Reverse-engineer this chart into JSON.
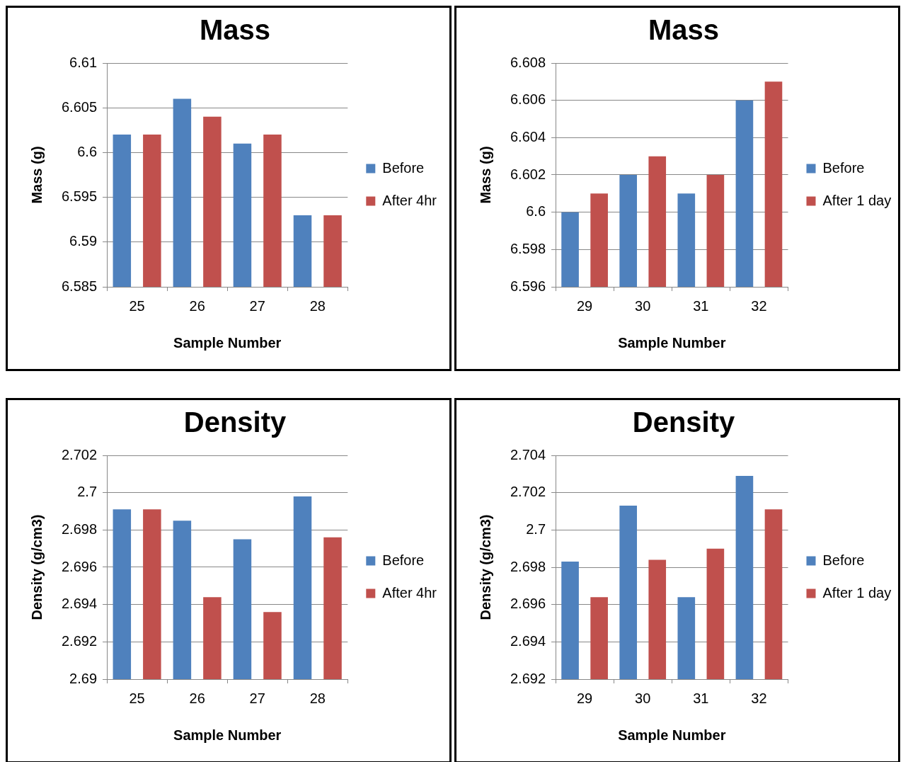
{
  "chart_data": [
    {
      "type": "bar",
      "title": "Mass",
      "xlabel": "Sample Number",
      "ylabel": "Mass (g)",
      "categories": [
        "25",
        "26",
        "27",
        "28"
      ],
      "series": [
        {
          "name": "Before",
          "color": "#4f81bd",
          "values": [
            6.602,
            6.606,
            6.601,
            6.593
          ]
        },
        {
          "name": "After 4hr",
          "color": "#c0504d",
          "values": [
            6.602,
            6.604,
            6.602,
            6.593
          ]
        }
      ],
      "ylim": [
        6.585,
        6.61
      ],
      "yticks": [
        6.585,
        6.59,
        6.595,
        6.6,
        6.605,
        6.61
      ],
      "grid": "y",
      "legend": "right"
    },
    {
      "type": "bar",
      "title": "Mass",
      "xlabel": "Sample Number",
      "ylabel": "Mass (g)",
      "categories": [
        "29",
        "30",
        "31",
        "32"
      ],
      "series": [
        {
          "name": "Before",
          "color": "#4f81bd",
          "values": [
            6.6,
            6.602,
            6.601,
            6.606
          ]
        },
        {
          "name": "After 1 day",
          "color": "#c0504d",
          "values": [
            6.601,
            6.603,
            6.602,
            6.607
          ]
        }
      ],
      "ylim": [
        6.596,
        6.608
      ],
      "yticks": [
        6.596,
        6.598,
        6.6,
        6.602,
        6.604,
        6.606,
        6.608
      ],
      "grid": "y",
      "legend": "right"
    },
    {
      "type": "bar",
      "title": "Density",
      "xlabel": "Sample Number",
      "ylabel": "Density (g/cm3)",
      "categories": [
        "25",
        "26",
        "27",
        "28"
      ],
      "series": [
        {
          "name": "Before",
          "color": "#4f81bd",
          "values": [
            2.6991,
            2.6985,
            2.6975,
            2.6998
          ]
        },
        {
          "name": "After 4hr",
          "color": "#c0504d",
          "values": [
            2.6991,
            2.6944,
            2.6936,
            2.6976
          ]
        }
      ],
      "ylim": [
        2.69,
        2.702
      ],
      "yticks": [
        2.69,
        2.692,
        2.694,
        2.696,
        2.698,
        2.7,
        2.702
      ],
      "grid": "y",
      "legend": "right"
    },
    {
      "type": "bar",
      "title": "Density",
      "xlabel": "Sample Number",
      "ylabel": "Density (g/cm3)",
      "categories": [
        "29",
        "30",
        "31",
        "32"
      ],
      "series": [
        {
          "name": "Before",
          "color": "#4f81bd",
          "values": [
            2.6983,
            2.7013,
            2.6964,
            2.7029
          ]
        },
        {
          "name": "After 1 day",
          "color": "#c0504d",
          "values": [
            2.6964,
            2.6984,
            2.699,
            2.7011
          ]
        }
      ],
      "ylim": [
        2.692,
        2.704
      ],
      "yticks": [
        2.692,
        2.694,
        2.696,
        2.698,
        2.7,
        2.702,
        2.704
      ],
      "grid": "y",
      "legend": "right"
    }
  ]
}
